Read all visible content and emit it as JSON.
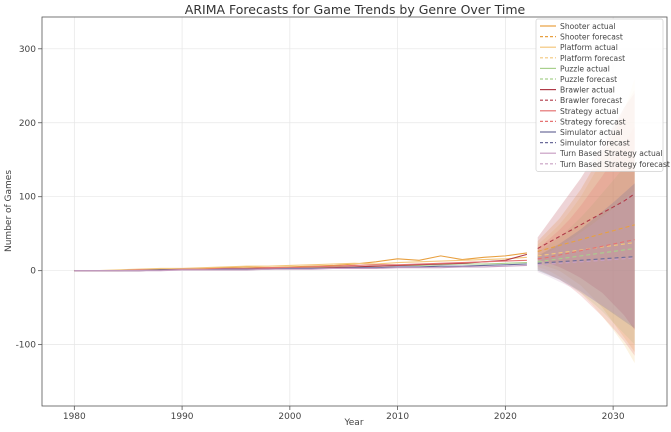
{
  "chart_data": {
    "type": "line",
    "title": "ARIMA Forecasts for Game Trends by Genre Over Time",
    "xlabel": "Year",
    "ylabel": "Number of Games",
    "xlim": [
      1977,
      2035
    ],
    "ylim": [
      -183,
      343
    ],
    "xticks": [
      1980,
      1990,
      2000,
      2010,
      2020,
      2030
    ],
    "yticks": [
      -100,
      0,
      100,
      200,
      300
    ],
    "grid": true,
    "legend_position": "top-right",
    "actual_years": [
      1980,
      1982,
      1984,
      1986,
      1988,
      1990,
      1992,
      1994,
      1996,
      1998,
      2000,
      2002,
      2004,
      2006,
      2008,
      2010,
      2012,
      2014,
      2016,
      2018,
      2020,
      2022
    ],
    "forecast_years": [
      2023,
      2024,
      2025,
      2026,
      2027,
      2028,
      2029,
      2030,
      2031,
      2032
    ],
    "series": [
      {
        "genre": "Shooter",
        "actual_label": "Shooter actual",
        "forecast_label": "Shooter forecast",
        "color": "#e8a040",
        "actual": [
          0,
          0,
          0,
          1,
          2,
          2,
          3,
          4,
          5,
          4,
          5,
          6,
          7,
          9,
          12,
          16,
          14,
          20,
          15,
          18,
          20,
          24
        ],
        "forecast": [
          26,
          30,
          34,
          38,
          42,
          46,
          50,
          54,
          58,
          62
        ],
        "ci_lower": [
          10,
          5,
          0,
          -10,
          -20,
          -35,
          -50,
          -70,
          -90,
          -110
        ],
        "ci_upper": [
          40,
          55,
          70,
          90,
          110,
          135,
          160,
          190,
          220,
          245
        ]
      },
      {
        "genre": "Platform",
        "actual_label": "Platform actual",
        "forecast_label": "Platform forecast",
        "color": "#f3c77d",
        "actual": [
          0,
          0,
          1,
          2,
          3,
          3,
          4,
          5,
          6,
          6,
          7,
          8,
          9,
          10,
          9,
          11,
          12,
          13,
          14,
          15,
          16,
          18
        ],
        "forecast": [
          20,
          22,
          24,
          26,
          28,
          30,
          32,
          34,
          36,
          38
        ],
        "ci_lower": [
          5,
          0,
          -8,
          -18,
          -30,
          -45,
          -62,
          -80,
          -100,
          -125
        ],
        "ci_upper": [
          35,
          48,
          62,
          80,
          100,
          125,
          150,
          180,
          215,
          260
        ]
      },
      {
        "genre": "Puzzle",
        "actual_label": "Puzzle actual",
        "forecast_label": "Puzzle forecast",
        "color": "#a8d08d",
        "actual": [
          0,
          0,
          0,
          1,
          1,
          2,
          2,
          2,
          3,
          3,
          4,
          4,
          5,
          5,
          6,
          7,
          7,
          8,
          9,
          9,
          10,
          11
        ],
        "forecast": [
          12,
          14,
          16,
          18,
          20,
          22,
          24,
          26,
          28,
          30
        ],
        "ci_lower": [
          0,
          -5,
          -12,
          -20,
          -30,
          -42,
          -55,
          -70,
          -85,
          -100
        ],
        "ci_upper": [
          25,
          35,
          45,
          58,
          72,
          88,
          105,
          122,
          140,
          160
        ]
      },
      {
        "genre": "Brawler",
        "actual_label": "Brawler actual",
        "forecast_label": "Brawler forecast",
        "color": "#b03a48",
        "actual": [
          0,
          0,
          0,
          0,
          1,
          1,
          1,
          2,
          2,
          3,
          3,
          3,
          4,
          5,
          6,
          7,
          8,
          9,
          10,
          12,
          14,
          22
        ],
        "forecast": [
          30,
          38,
          46,
          54,
          62,
          70,
          78,
          86,
          94,
          104
        ],
        "ci_lower": [
          15,
          10,
          5,
          -2,
          -10,
          -20,
          -30,
          -45,
          -60,
          -80
        ],
        "ci_upper": [
          45,
          65,
          85,
          105,
          125,
          148,
          170,
          195,
          220,
          240
        ]
      },
      {
        "genre": "Strategy",
        "actual_label": "Strategy actual",
        "forecast_label": "Strategy forecast",
        "color": "#e57373",
        "actual": [
          0,
          0,
          0,
          1,
          1,
          2,
          2,
          3,
          3,
          4,
          4,
          5,
          6,
          7,
          8,
          8,
          9,
          10,
          11,
          12,
          13,
          14
        ],
        "forecast": [
          16,
          18,
          21,
          24,
          27,
          30,
          33,
          36,
          39,
          42
        ],
        "ci_lower": [
          2,
          -5,
          -12,
          -22,
          -34,
          -48,
          -62,
          -78,
          -95,
          -115
        ],
        "ci_upper": [
          30,
          42,
          55,
          70,
          88,
          108,
          128,
          150,
          172,
          195
        ]
      },
      {
        "genre": "Simulator",
        "actual_label": "Simulator actual",
        "forecast_label": "Simulator forecast",
        "color": "#6b6b9a",
        "actual": [
          0,
          0,
          0,
          0,
          1,
          1,
          1,
          2,
          2,
          2,
          3,
          3,
          3,
          4,
          4,
          5,
          5,
          6,
          6,
          7,
          8,
          9
        ],
        "forecast": [
          10,
          11,
          12,
          13,
          14,
          15,
          16,
          17,
          18,
          19
        ],
        "ci_lower": [
          0,
          -6,
          -12,
          -20,
          -28,
          -38,
          -48,
          -58,
          -68,
          -78
        ],
        "ci_upper": [
          20,
          28,
          36,
          46,
          56,
          68,
          80,
          92,
          105,
          118
        ]
      },
      {
        "genre": "Turn Based Strategy",
        "actual_label": "Turn Based Strategy actual",
        "forecast_label": "Turn Based Strategy forecast",
        "color": "#c9a0c4",
        "actual": [
          0,
          0,
          0,
          0,
          0,
          1,
          1,
          1,
          1,
          2,
          2,
          2,
          3,
          3,
          3,
          4,
          4,
          4,
          5,
          5,
          6,
          7
        ],
        "forecast": [
          8,
          9,
          10,
          11,
          12,
          13,
          14,
          15,
          16,
          17
        ],
        "ci_lower": [
          -2,
          -8,
          -15,
          -22,
          -30,
          -38,
          -47,
          -56,
          -66,
          -75
        ],
        "ci_upper": [
          18,
          25,
          33,
          42,
          52,
          62,
          73,
          84,
          96,
          108
        ]
      }
    ]
  }
}
